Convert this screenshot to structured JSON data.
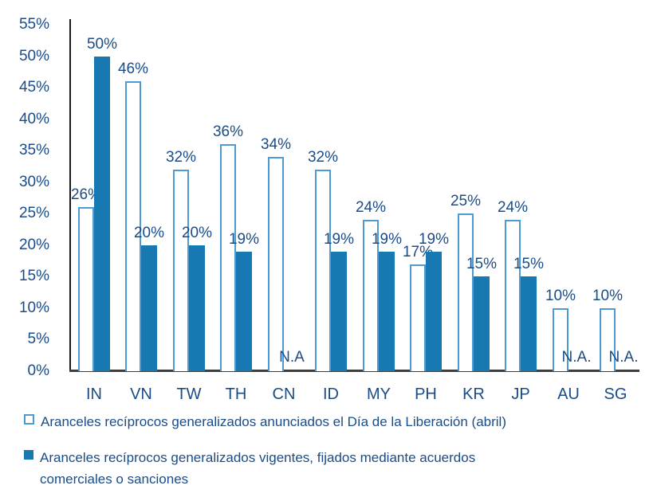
{
  "colors": {
    "text": "#1A4C87",
    "announced_fill": "#FFFFFF",
    "announced_border": "#4E9BD4",
    "current_fill": "#1879B2",
    "y_axis_line": "#1A1A1A",
    "x_axis_line": "#3D3D3D"
  },
  "chart_data": {
    "type": "bar",
    "categories": [
      "IN",
      "VN",
      "TW",
      "TH",
      "CN",
      "ID",
      "MY",
      "PH",
      "KR",
      "JP",
      "AU",
      "SG"
    ],
    "series": [
      {
        "name": "Aranceles recíprocos generalizados anunciados el Día de la Liberación (abril)",
        "style": "outlined",
        "values": [
          26,
          46,
          32,
          36,
          34,
          32,
          24,
          17,
          25,
          24,
          10,
          10
        ],
        "labels": [
          "26%",
          "46%",
          "32%",
          "36%",
          "34%",
          "32%",
          "24%",
          "17%",
          "25%",
          "24%",
          "10%",
          "10%"
        ]
      },
      {
        "name": "Aranceles recíprocos generalizados vigentes, fijados mediante acuerdos comerciales o sanciones",
        "style": "solid",
        "values": [
          50,
          20,
          20,
          19,
          null,
          19,
          19,
          19,
          15,
          15,
          null,
          null
        ],
        "labels": [
          "50%",
          "20%",
          "20%",
          "19%",
          "N.A",
          "19%",
          "19%",
          "19%",
          "15%",
          "15%",
          "N.A.",
          "N.A."
        ]
      }
    ],
    "title": "",
    "xlabel": "",
    "ylabel": "",
    "ylim": [
      0,
      55
    ],
    "ytick_step": 5,
    "ytick_labels": [
      "0%",
      "5%",
      "10%",
      "15%",
      "20%",
      "25%",
      "30%",
      "35%",
      "40%",
      "45%",
      "50%",
      "55%"
    ],
    "grid": false,
    "legend_position": "bottom"
  },
  "legend": {
    "announced": "Aranceles recíprocos generalizados anunciados el Día de la Liberación (abril)",
    "current": "Aranceles recíprocos generalizados vigentes, fijados mediante acuerdos comerciales o sanciones"
  }
}
